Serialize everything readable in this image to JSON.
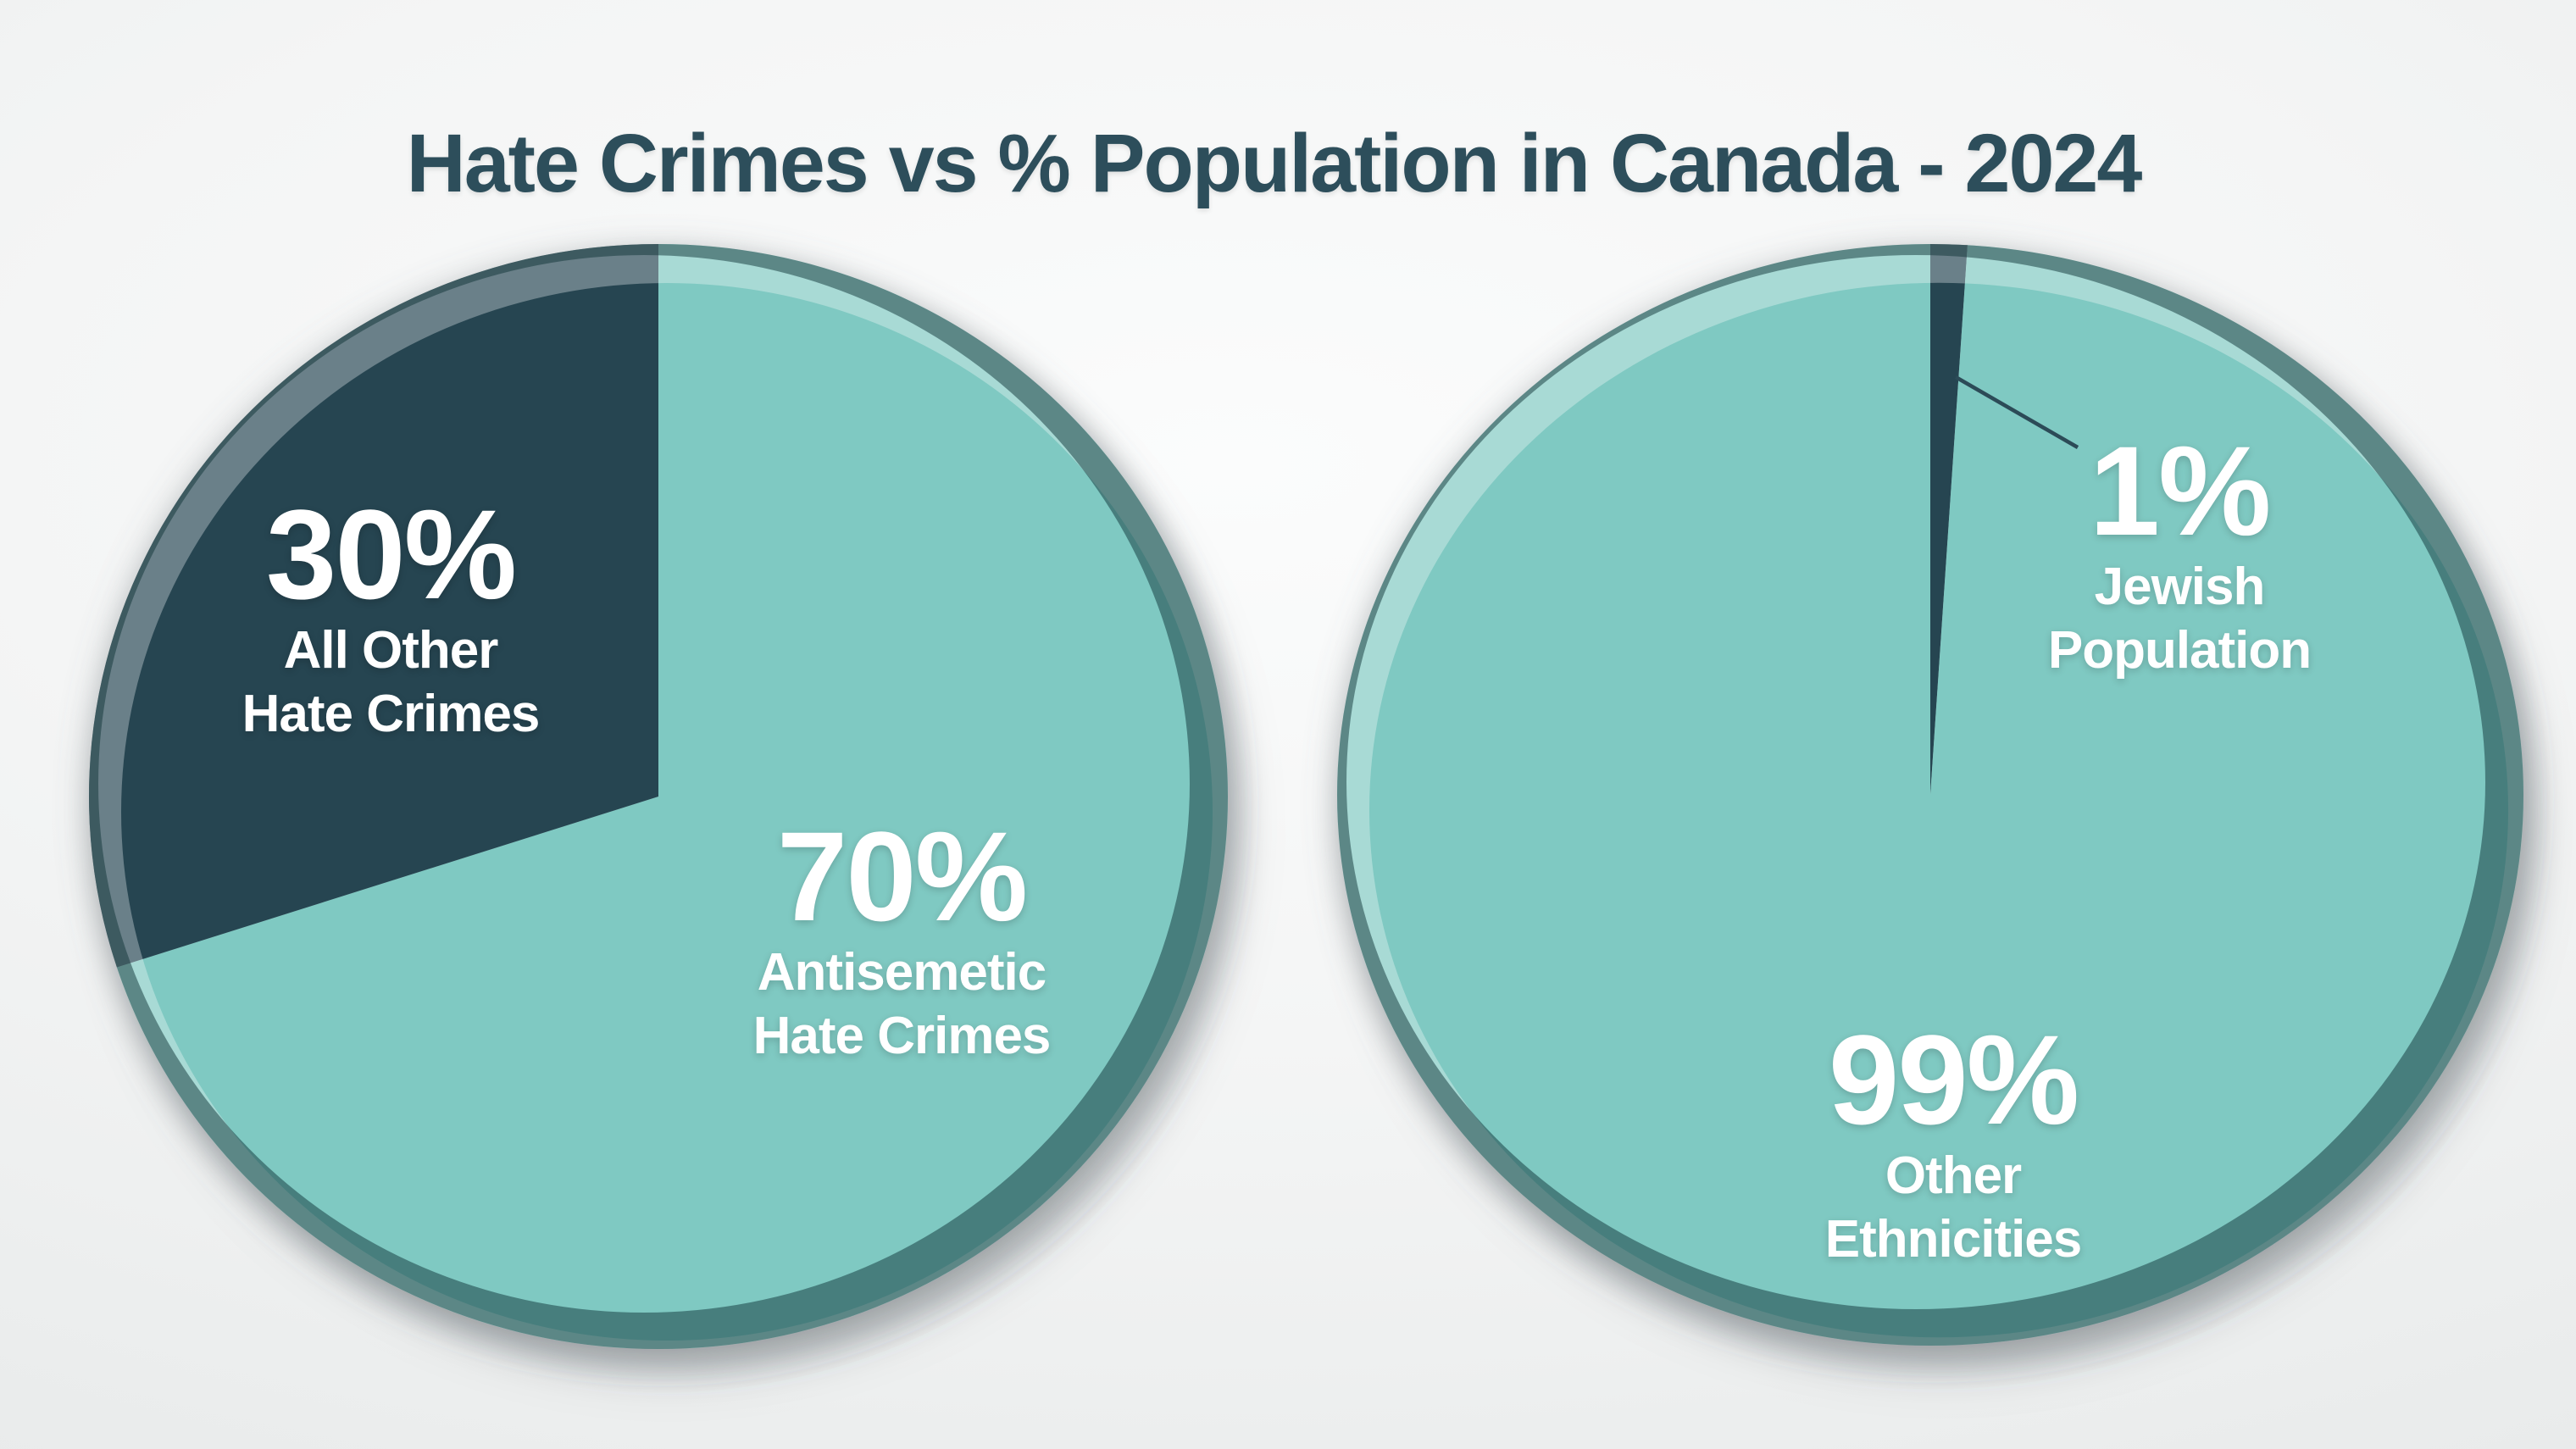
{
  "title": "Hate Crimes vs % Population in Canada - 2024",
  "colors": {
    "teal": "#7FC9C2",
    "dark_slate": "#264551",
    "title_text": "#2D4E5B",
    "label_text": "#FFFFFF",
    "leader_line": "#2C4B57",
    "background_light": "#F4F5F5"
  },
  "chart_data": [
    {
      "type": "pie",
      "name": "hate-crimes-share",
      "start_angle_deg": 0,
      "direction": "clockwise",
      "legend": "none",
      "slices": [
        {
          "value": 70,
          "pct_label": "70%",
          "label_lines": [
            "Antisemetic",
            "Hate Crimes"
          ],
          "color": "#7FC9C2",
          "text_color": "#FFFFFF"
        },
        {
          "value": 30,
          "pct_label": "30%",
          "label_lines": [
            "All Other",
            "Hate Crimes"
          ],
          "color": "#264551",
          "text_color": "#FFFFFF"
        }
      ]
    },
    {
      "type": "pie",
      "name": "population-share",
      "start_angle_deg": 0,
      "direction": "clockwise",
      "legend": "none",
      "slices": [
        {
          "value": 1,
          "pct_label": "1%",
          "label_lines": [
            "Jewish",
            "Population"
          ],
          "color": "#264551",
          "text_color": "#FFFFFF",
          "leader_line": true
        },
        {
          "value": 99,
          "pct_label": "99%",
          "label_lines": [
            "Other",
            "Ethnicities"
          ],
          "color": "#7FC9C2",
          "text_color": "#FFFFFF"
        }
      ]
    }
  ]
}
